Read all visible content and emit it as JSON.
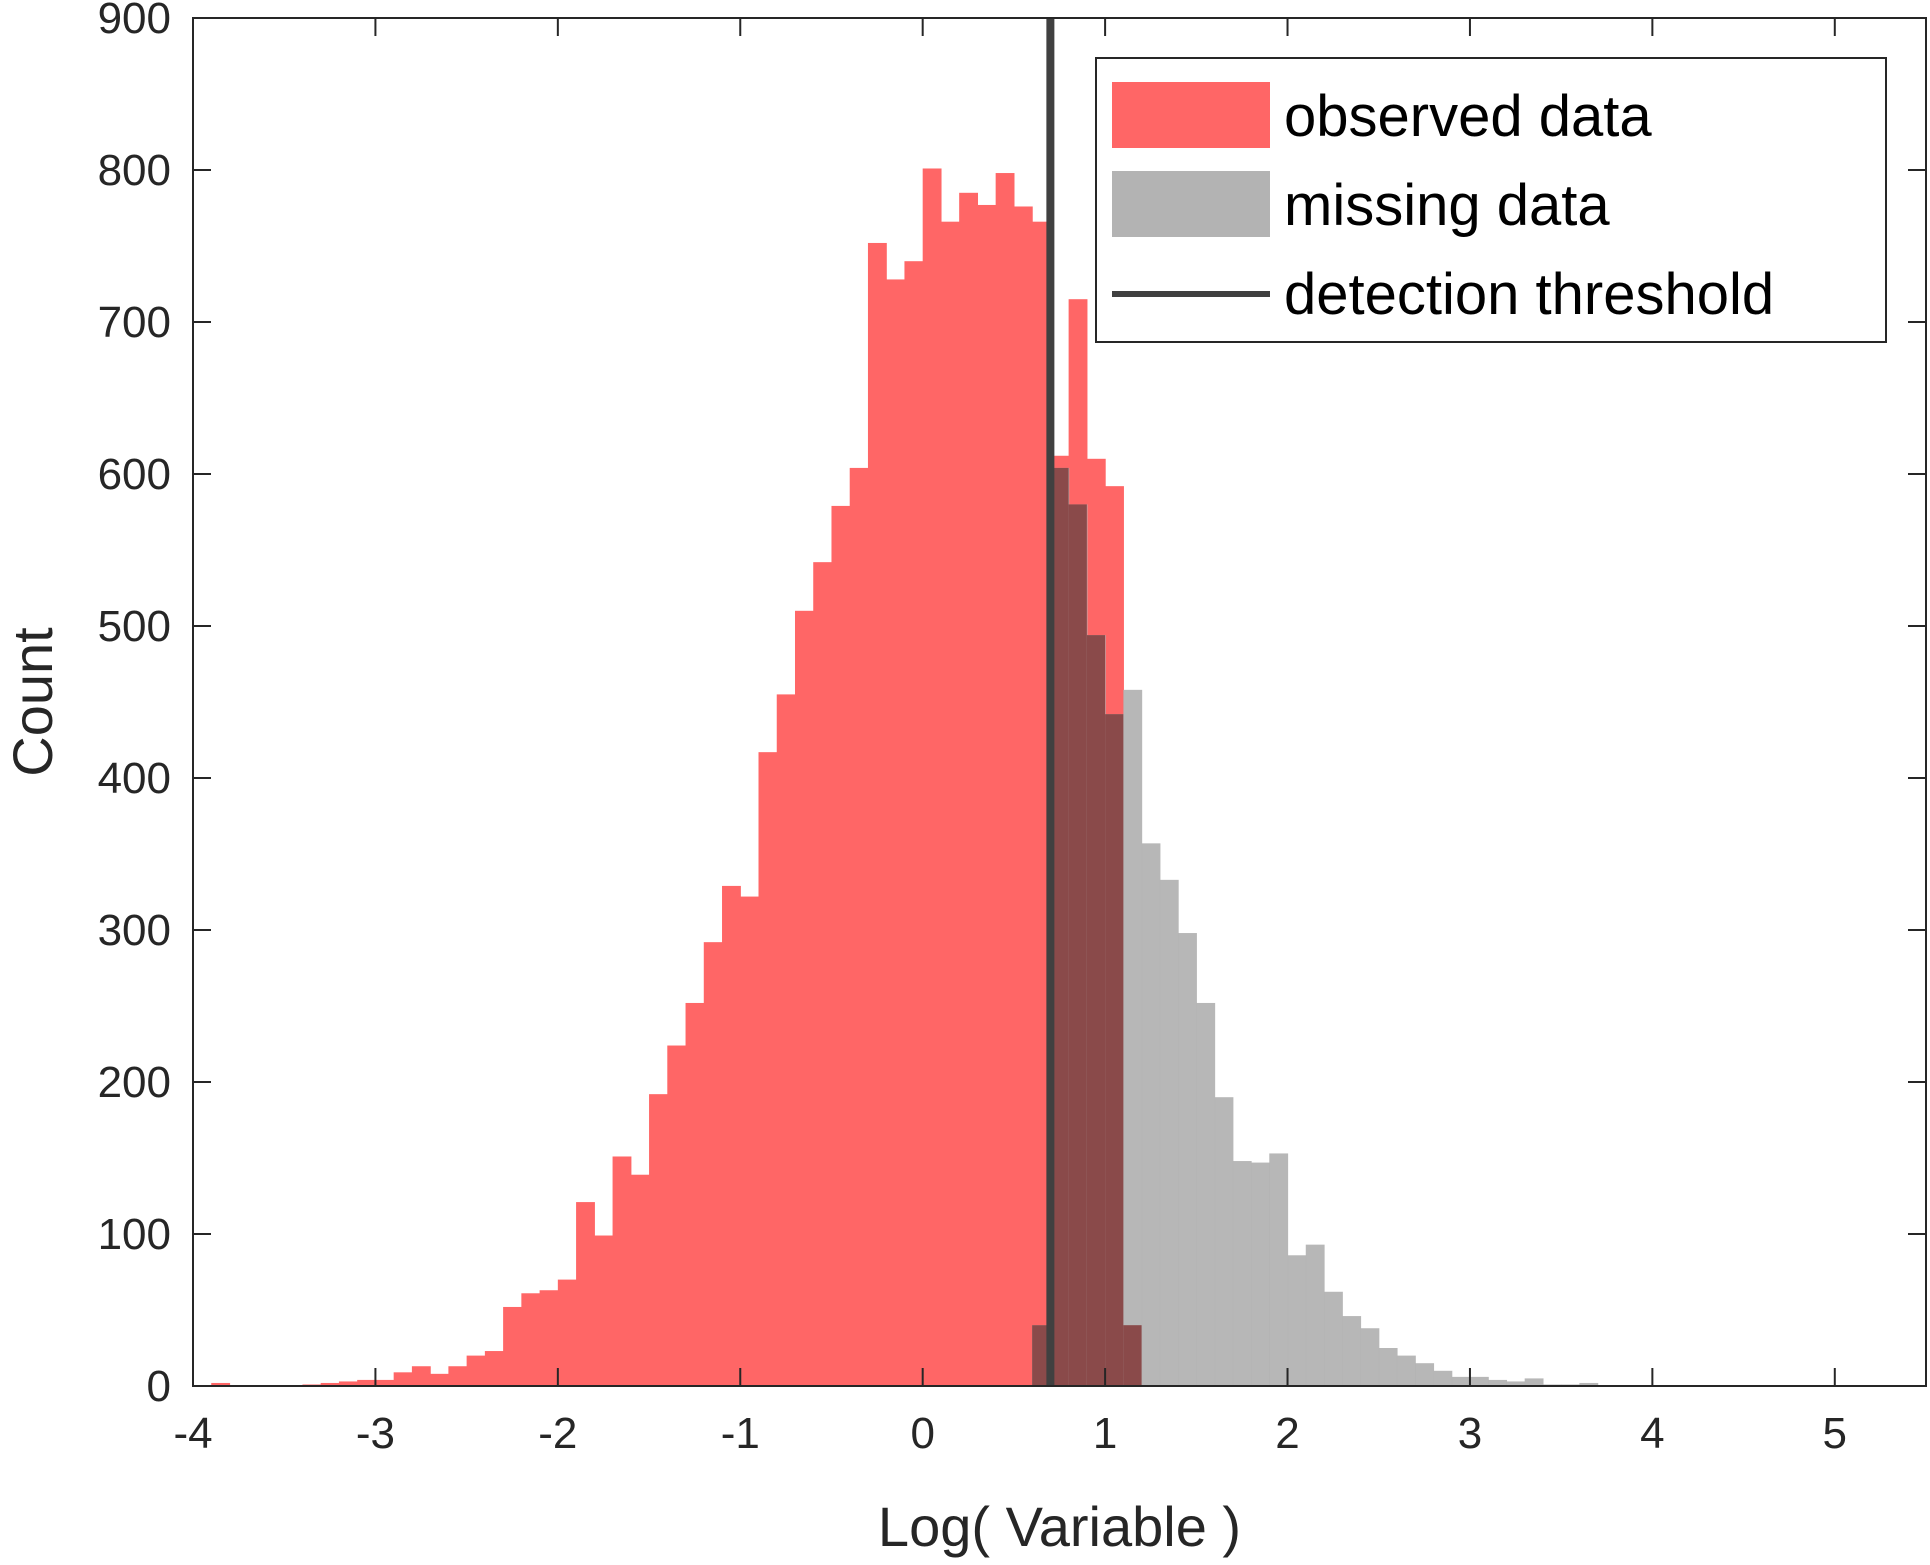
{
  "chart_data": {
    "type": "bar",
    "xlabel": "Log( Variable )",
    "ylabel": "Count",
    "xlim": [
      -4,
      5.5
    ],
    "ylim": [
      0,
      900
    ],
    "xticks": [
      "-4",
      "-3",
      "-2",
      "-1",
      "0",
      "1",
      "2",
      "3",
      "4",
      "5"
    ],
    "yticks": [
      "0",
      "100",
      "200",
      "300",
      "400",
      "500",
      "600",
      "700",
      "800",
      "900"
    ],
    "bin_width": 0.1,
    "grid": false,
    "legend": {
      "position": "top-right",
      "entries": [
        {
          "label": "observed data",
          "type": "patch",
          "color": "#ff6666"
        },
        {
          "label": "missing data",
          "type": "patch",
          "color": "#b3b3b3"
        },
        {
          "label": "detection threshold",
          "type": "line",
          "color": "#404040"
        }
      ]
    },
    "threshold": {
      "name": "detection threshold",
      "x": 0.7,
      "color": "#404040"
    },
    "series": [
      {
        "name": "observed data",
        "color": "#ff6666",
        "bin_start": -4.0,
        "values": [
          0,
          2,
          0,
          0,
          0,
          0,
          1,
          2,
          3,
          4,
          4,
          9,
          13,
          8,
          13,
          20,
          23,
          52,
          61,
          63,
          70,
          121,
          99,
          151,
          139,
          192,
          224,
          252,
          292,
          329,
          322,
          417,
          455,
          510,
          542,
          579,
          604,
          752,
          728,
          740,
          801,
          766,
          785,
          777,
          798,
          776,
          766,
          612,
          715,
          610,
          592,
          40
        ]
      },
      {
        "name": "missing data",
        "color": "#b3b3b3",
        "bin_start": 0.6,
        "values": [
          40,
          604,
          580,
          494,
          442,
          458,
          357,
          333,
          298,
          252,
          190,
          148,
          147,
          153,
          86,
          93,
          62,
          46,
          38,
          25,
          20,
          15,
          10,
          6,
          6,
          4,
          3,
          5,
          1,
          1,
          2
        ]
      }
    ]
  }
}
